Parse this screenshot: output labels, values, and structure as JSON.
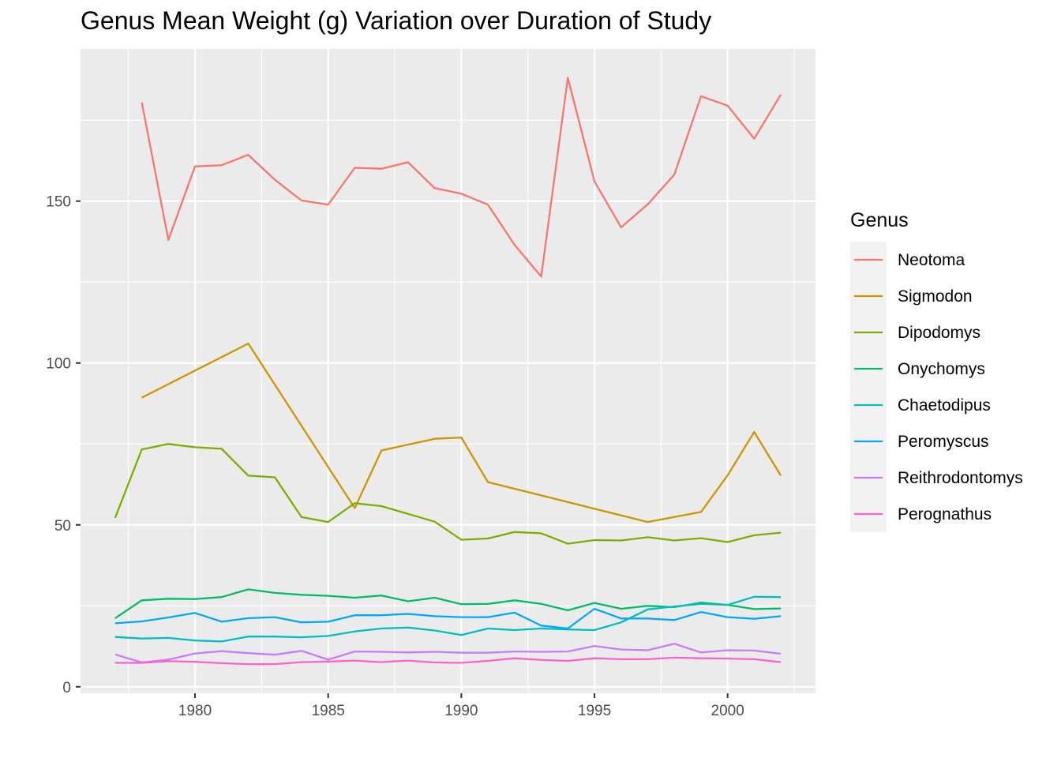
{
  "chart_data": {
    "type": "line",
    "title": "Genus Mean Weight (g) Variation over Duration of Study",
    "xlabel": "",
    "ylabel": "",
    "xlim": [
      1975.7,
      2003.3
    ],
    "ylim": [
      -2,
      197
    ],
    "x_ticks": [
      1980,
      1985,
      1990,
      1995,
      2000
    ],
    "y_ticks": [
      0,
      50,
      100,
      150
    ],
    "grid": true,
    "legend": {
      "title": "Genus",
      "position": "right"
    },
    "series": [
      {
        "name": "Neotoma",
        "color": "#F8766D",
        "x": [
          1978,
          1979,
          1980,
          1981,
          1982,
          1983,
          1984,
          1985,
          1986,
          1987,
          1988,
          1989,
          1990,
          1991,
          1992,
          1993,
          1994,
          1995,
          1996,
          1997,
          1998,
          1999,
          2000,
          2001,
          2002
        ],
        "values": [
          180.5,
          138,
          160.7,
          161.1,
          164.3,
          156.6,
          150.2,
          148.9,
          160.3,
          160,
          162,
          154,
          152.3,
          148.9,
          136.5,
          126.7,
          188.1,
          156.1,
          141.9,
          149,
          158.2,
          182.4,
          179.5,
          169.3,
          182.9
        ]
      },
      {
        "name": "Sigmodon",
        "color": "#CD9600",
        "x": [
          1978,
          1982,
          1986,
          1987,
          1989,
          1990,
          1991,
          1997,
          1999,
          2000,
          2001,
          2002
        ],
        "values": [
          89.3,
          106,
          55.2,
          73,
          76.6,
          77,
          63.2,
          50.9,
          54,
          65.3,
          78.7,
          65.2
        ]
      },
      {
        "name": "Dipodomys",
        "color": "#7CAE00",
        "x": [
          1977,
          1978,
          1979,
          1980,
          1981,
          1982,
          1983,
          1984,
          1985,
          1986,
          1987,
          1988,
          1989,
          1990,
          1991,
          1992,
          1993,
          1994,
          1995,
          1996,
          1997,
          1998,
          1999,
          2000,
          2001,
          2002
        ],
        "values": [
          52.2,
          73.3,
          75,
          74,
          73.5,
          65.2,
          64.7,
          52.4,
          50.9,
          56.7,
          55.8,
          53.4,
          51,
          45.4,
          45.8,
          47.8,
          47.4,
          44.2,
          45.3,
          45.2,
          46.2,
          45.2,
          45.9,
          44.7,
          46.8,
          47.6
        ]
      },
      {
        "name": "Onychomys",
        "color": "#00BE67",
        "x": [
          1977,
          1978,
          1979,
          1980,
          1981,
          1982,
          1983,
          1984,
          1985,
          1986,
          1987,
          1988,
          1989,
          1990,
          1991,
          1992,
          1993,
          1994,
          1995,
          1996,
          1997,
          1998,
          1999,
          2000,
          2001,
          2002
        ],
        "values": [
          21.2,
          26.7,
          27.2,
          27.1,
          27.7,
          30.1,
          29,
          28.4,
          28.1,
          27.5,
          28.2,
          26.4,
          27.5,
          25.5,
          25.6,
          26.7,
          25.6,
          23.6,
          25.9,
          24.1,
          25,
          24.6,
          26,
          25.3,
          24,
          24.2
        ]
      },
      {
        "name": "Chaetodipus",
        "color": "#00BFC4",
        "x": [
          1977,
          1978,
          1979,
          1980,
          1981,
          1982,
          1983,
          1984,
          1985,
          1986,
          1987,
          1988,
          1989,
          1990,
          1991,
          1992,
          1993,
          1994,
          1995,
          1996,
          1997,
          1998,
          1999,
          2000,
          2001,
          2002
        ],
        "values": [
          15.4,
          14.9,
          15.1,
          14.3,
          14,
          15.5,
          15.5,
          15.3,
          15.7,
          17.1,
          18,
          18.3,
          17.4,
          16,
          18,
          17.5,
          18,
          17.7,
          17.5,
          19.9,
          23.9,
          24.8,
          25.6,
          25.3,
          27.8,
          27.7
        ]
      },
      {
        "name": "Peromyscus",
        "color": "#00A9FF",
        "x": [
          1977,
          1978,
          1979,
          1980,
          1981,
          1982,
          1983,
          1984,
          1985,
          1986,
          1987,
          1988,
          1989,
          1990,
          1991,
          1992,
          1993,
          1994,
          1995,
          1996,
          1997,
          1998,
          1999,
          2000,
          2001,
          2002
        ],
        "values": [
          19.6,
          20.2,
          21.4,
          22.8,
          20.1,
          21.2,
          21.5,
          19.9,
          20.1,
          22.1,
          22.1,
          22.5,
          21.8,
          21.5,
          21.5,
          22.9,
          18.9,
          18,
          24.1,
          21.1,
          21.1,
          20.6,
          23.1,
          21.5,
          21,
          21.8
        ]
      },
      {
        "name": "Reithrodontomys",
        "color": "#C77CFF",
        "x": [
          1977,
          1978,
          1979,
          1980,
          1981,
          1982,
          1983,
          1984,
          1985,
          1986,
          1987,
          1988,
          1989,
          1990,
          1991,
          1992,
          1993,
          1994,
          1995,
          1996,
          1997,
          1998,
          1999,
          2000,
          2001,
          2002
        ],
        "values": [
          10,
          7.5,
          8.4,
          10.3,
          11,
          10.4,
          9.9,
          11.1,
          8.4,
          10.9,
          10.8,
          10.6,
          10.8,
          10.5,
          10.5,
          10.9,
          10.8,
          10.9,
          12.6,
          11.5,
          11.3,
          13.3,
          10.6,
          11.3,
          11.2,
          10.2
        ]
      },
      {
        "name": "Perognathus",
        "color": "#FF61CC",
        "x": [
          1977,
          1978,
          1979,
          1980,
          1981,
          1982,
          1983,
          1984,
          1985,
          1986,
          1987,
          1988,
          1989,
          1990,
          1991,
          1992,
          1993,
          1994,
          1995,
          1996,
          1997,
          1998,
          1999,
          2000,
          2001,
          2002
        ],
        "values": [
          7.4,
          7.4,
          7.9,
          7.7,
          7.3,
          7,
          7,
          7.6,
          7.8,
          8.1,
          7.6,
          8.1,
          7.5,
          7.4,
          8,
          8.8,
          8.3,
          8,
          8.8,
          8.5,
          8.5,
          9,
          8.8,
          8.7,
          8.5,
          7.6
        ]
      }
    ]
  }
}
